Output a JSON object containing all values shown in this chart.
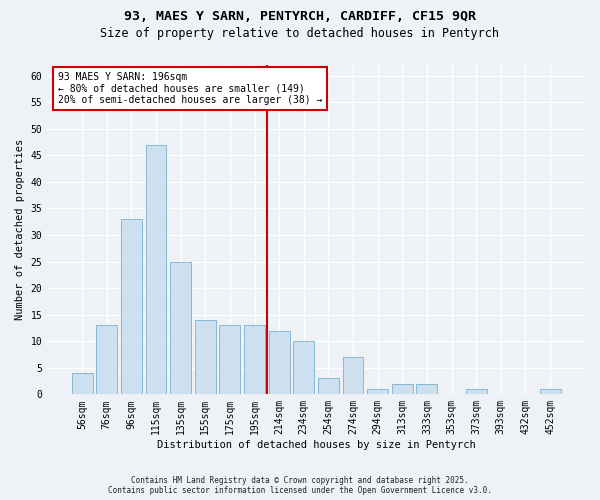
{
  "title1": "93, MAES Y SARN, PENTYRCH, CARDIFF, CF15 9QR",
  "title2": "Size of property relative to detached houses in Pentyrch",
  "xlabel": "Distribution of detached houses by size in Pentyrch",
  "ylabel": "Number of detached properties",
  "categories": [
    "56sqm",
    "76sqm",
    "96sqm",
    "115sqm",
    "135sqm",
    "155sqm",
    "175sqm",
    "195sqm",
    "214sqm",
    "234sqm",
    "254sqm",
    "274sqm",
    "294sqm",
    "313sqm",
    "333sqm",
    "353sqm",
    "373sqm",
    "393sqm",
    "432sqm",
    "452sqm"
  ],
  "values": [
    4,
    13,
    33,
    47,
    25,
    14,
    13,
    13,
    12,
    10,
    3,
    7,
    1,
    2,
    2,
    0,
    1,
    0,
    0,
    1
  ],
  "bar_color": "#cce0f0",
  "bar_edge_color": "#7ab0d0",
  "vline_index": 7,
  "vline_color": "#cc0000",
  "annotation_title": "93 MAES Y SARN: 196sqm",
  "annotation_line1": "← 80% of detached houses are smaller (149)",
  "annotation_line2": "20% of semi-detached houses are larger (38) →",
  "annotation_box_color": "#cc0000",
  "ylim": [
    0,
    62
  ],
  "yticks": [
    0,
    5,
    10,
    15,
    20,
    25,
    30,
    35,
    40,
    45,
    50,
    55,
    60
  ],
  "footnote1": "Contains HM Land Registry data © Crown copyright and database right 2025.",
  "footnote2": "Contains public sector information licensed under the Open Government Licence v3.0.",
  "bg_color": "#eef2f7",
  "plot_bg_color": "#eef2f7",
  "title1_fontsize": 9.5,
  "title2_fontsize": 8.5,
  "xlabel_fontsize": 7.5,
  "ylabel_fontsize": 7.5,
  "tick_fontsize": 7,
  "annot_fontsize": 7,
  "footnote_fontsize": 5.5
}
